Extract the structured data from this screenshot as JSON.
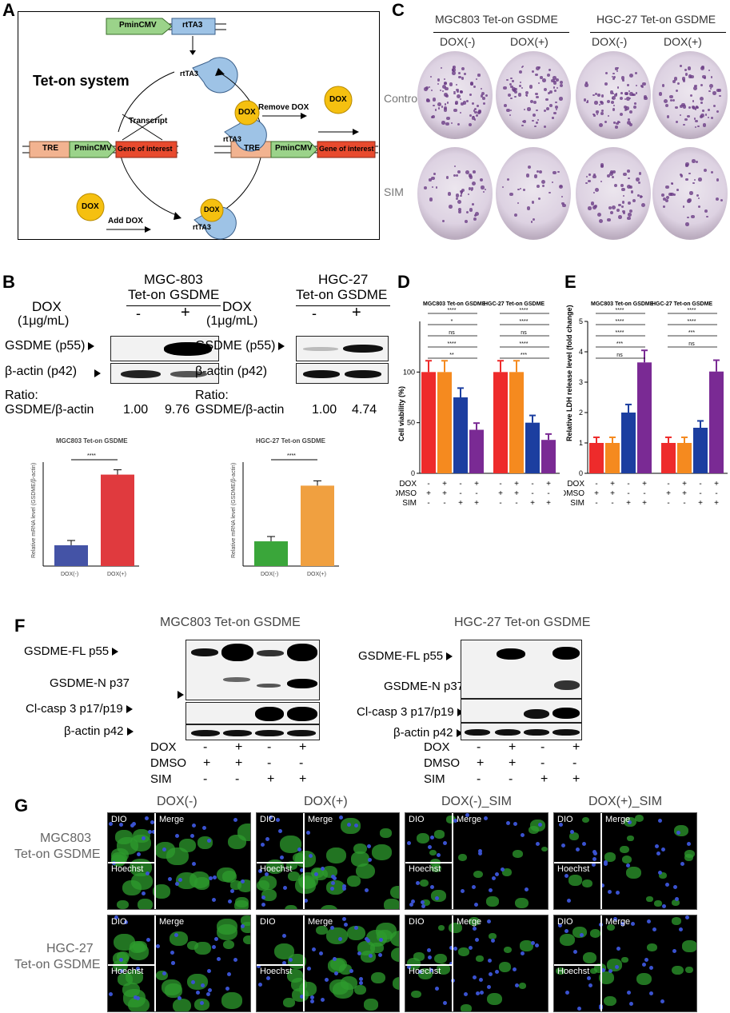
{
  "panels": {
    "A": "A",
    "B": "B",
    "C": "C",
    "D": "D",
    "E": "E",
    "F": "F",
    "G": "G"
  },
  "panelA": {
    "title": "Tet-on system",
    "pmincmv": "PminCMV",
    "rtta3": "rtTA3",
    "tre": "TRE",
    "gene": "Gene of interest",
    "transcript": "Transcript",
    "dox": "DOX",
    "add_dox": "Add DOX",
    "remove_dox": "Remove DOX"
  },
  "panelC": {
    "group1": "MGC803 Tet-on GSDME",
    "group2": "HGC-27 Tet-on GSDME",
    "dox_minus": "DOX(-)",
    "dox_plus": "DOX(+)",
    "row1": "Control",
    "row2": "SIM"
  },
  "panelB": {
    "mgc_title1": "MGC-803",
    "mgc_title2": "Tet-on GSDME",
    "hgc_title1": "HGC-27",
    "hgc_title2": "Tet-on GSDME",
    "dox_label": "DOX",
    "dox_conc": "(1μg/mL)",
    "minus": "-",
    "plus": "+",
    "gsdme": "GSDME (p55)",
    "actin": "β-actin (p42)",
    "ratio": "Ratio:",
    "ratio_label": "GSDME/β-actin",
    "mgc_ratios": [
      "1.00",
      "9.76"
    ],
    "hgc_ratios": [
      "1.00",
      "4.74"
    ],
    "sig": "****",
    "ylabel1": "Relative mRNA level (GSDME/β-actin)",
    "ylabel2": "Relative mRNA level (GSDME/β-actin)"
  },
  "chart_data": [
    {
      "type": "bar",
      "title": "MGC803 Tet-on GSDME",
      "categories": [
        "DOX(-)",
        "DOX(+)"
      ],
      "values": [
        1.0,
        4.4
      ],
      "colors": [
        "#4453a6",
        "#e03a3e"
      ],
      "ylabel": "Relative mRNA level (GSDME/β-actin)"
    },
    {
      "type": "bar",
      "title": "HGC-27 Tet-on GSDME",
      "categories": [
        "DOX(-)",
        "DOX(+)"
      ],
      "values": [
        1.0,
        3.25
      ],
      "colors": [
        "#3aa63a",
        "#f0a040"
      ],
      "ylabel": "Relative mRNA level (GSDME/β-actin)"
    },
    {
      "type": "bar",
      "titles": [
        "MGC803 Tet-on GSDME",
        "HGC-27 Tet-on GSDME"
      ],
      "ylabel": "Cell viability (%)",
      "ylim": [
        0,
        150
      ],
      "yticks": [
        "0",
        "50",
        "100"
      ],
      "values": [
        100,
        100,
        75,
        43,
        100,
        100,
        50,
        33
      ],
      "colors": [
        "#ee2b2b",
        "#f58a1f",
        "#1c3ea0",
        "#7a2a94",
        "#ee2b2b",
        "#f58a1f",
        "#1c3ea0",
        "#7a2a94"
      ],
      "sig_labels": [
        "****",
        "*",
        "ns",
        "****",
        "**",
        "****",
        "****",
        "ns",
        "****",
        "***"
      ],
      "row_labels": [
        "DOX",
        "DMSO",
        "SIM"
      ],
      "rows": [
        [
          "-",
          "+",
          "-",
          "+",
          "-",
          "+",
          "-",
          "+"
        ],
        [
          "+",
          "+",
          "-",
          "-",
          "+",
          "+",
          "-",
          "-"
        ],
        [
          "-",
          "-",
          "+",
          "+",
          "-",
          "-",
          "+",
          "+"
        ]
      ]
    },
    {
      "type": "bar",
      "titles": [
        "MGC803 Tet-on GSDME",
        "HGC-27 Tet-on GSDME"
      ],
      "ylabel": "Relative LDH release level (fold change)",
      "ylim": [
        0,
        5
      ],
      "yticks": [
        "0",
        "1",
        "2",
        "3",
        "4",
        "5"
      ],
      "values": [
        1.0,
        1.0,
        2.0,
        3.65,
        1.0,
        1.0,
        1.5,
        3.35
      ],
      "colors": [
        "#ee2b2b",
        "#f58a1f",
        "#1c3ea0",
        "#7a2a94",
        "#ee2b2b",
        "#f58a1f",
        "#1c3ea0",
        "#7a2a94"
      ],
      "sig_labels": [
        "****",
        "****",
        "****",
        "***",
        "ns",
        "****",
        "****",
        "***",
        "ns"
      ],
      "row_labels": [
        "DOX",
        "DMSO",
        "SIM"
      ],
      "rows": [
        [
          "-",
          "+",
          "-",
          "+",
          "-",
          "+",
          "-",
          "+"
        ],
        [
          "+",
          "+",
          "-",
          "-",
          "+",
          "+",
          "-",
          "-"
        ],
        [
          "-",
          "-",
          "+",
          "+",
          "-",
          "-",
          "+",
          "+"
        ]
      ]
    }
  ],
  "panelF": {
    "mgc_title": "MGC803 Tet-on GSDME",
    "hgc_title": "HGC-27 Tet-on GSDME",
    "fl": "GSDME-FL p55",
    "n": "GSDME-N p37",
    "casp": "Cl-casp 3 p17/p19",
    "actin": "β-actin p42",
    "row_labels": [
      "DOX",
      "DMSO",
      "SIM"
    ],
    "rows": [
      [
        "-",
        "+",
        "-",
        "+"
      ],
      [
        "+",
        "+",
        "-",
        "-"
      ],
      [
        "-",
        "-",
        "+",
        "+"
      ]
    ]
  },
  "panelG": {
    "cols": [
      "DOX(-)",
      "DOX(+)",
      "DOX(-)_SIM",
      "DOX(+)_SIM"
    ],
    "row1a": "MGC803",
    "row1b": "Tet-on GSDME",
    "row2a": "HGC-27",
    "row2b": "Tet-on GSDME",
    "dio": "DIO",
    "merge": "Merge",
    "hoechst": "Hoechst"
  }
}
